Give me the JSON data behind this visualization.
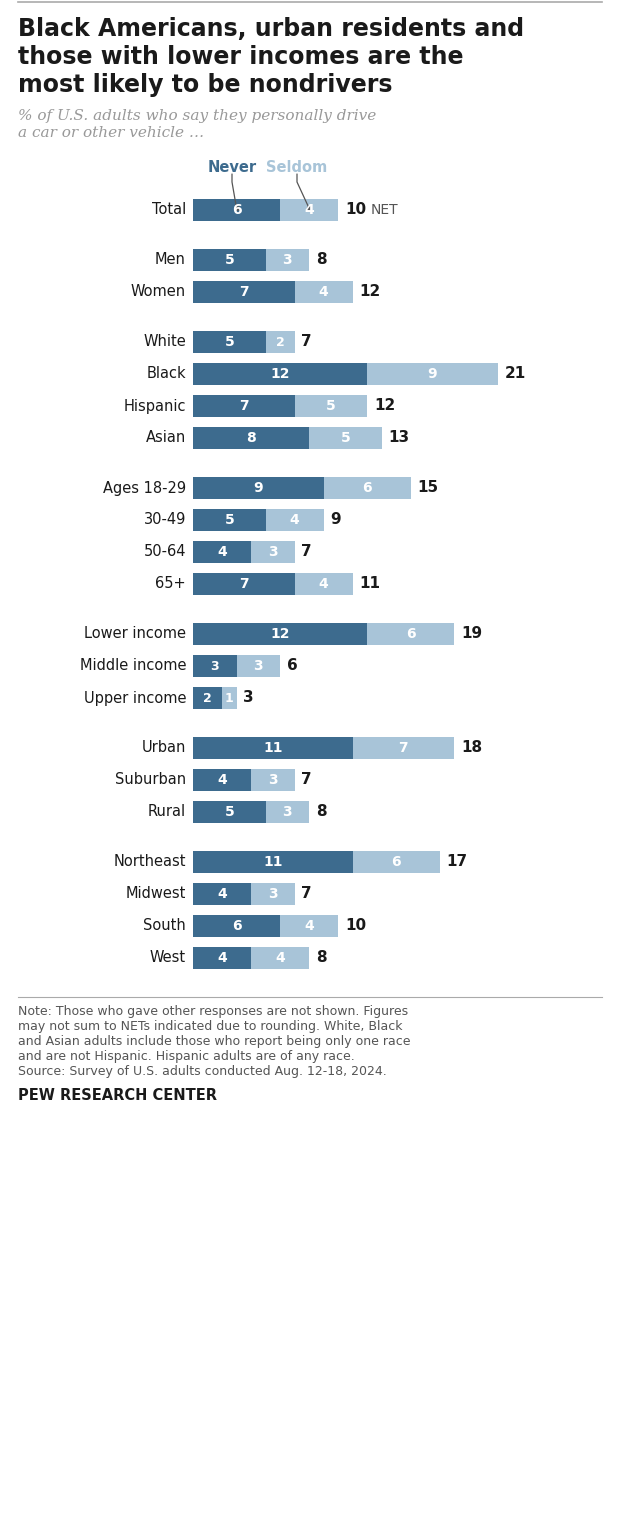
{
  "title_lines": [
    "Black Americans, urban residents and",
    "those with lower incomes are the",
    "most likely to be nondrivers"
  ],
  "subtitle_lines": [
    "% of U.S. adults who say they personally drive",
    "a car or other vehicle …"
  ],
  "note_lines": [
    "Note: Those who gave other responses are not shown. Figures",
    "may not sum to NETs indicated due to rounding. White, Black",
    "and Asian adults include those who report being only one race",
    "and are not Hispanic. Hispanic adults are of any race.",
    "Source: Survey of U.S. adults conducted Aug. 12-18, 2024."
  ],
  "source": "PEW RESEARCH CENTER",
  "color_never": "#3d6b8e",
  "color_seldom": "#a8c4d8",
  "categories": [
    "Total",
    "Men",
    "Women",
    "White",
    "Black",
    "Hispanic",
    "Asian",
    "Ages 18-29",
    "30-49",
    "50-64",
    "65+",
    "Lower income",
    "Middle income",
    "Upper income",
    "Urban",
    "Suburban",
    "Rural",
    "Northeast",
    "Midwest",
    "South",
    "West"
  ],
  "groups": [
    [
      0
    ],
    [
      1,
      2
    ],
    [
      3,
      4,
      5,
      6
    ],
    [
      7,
      8,
      9,
      10
    ],
    [
      11,
      12,
      13
    ],
    [
      14,
      15,
      16
    ],
    [
      17,
      18,
      19,
      20
    ]
  ],
  "never": [
    6,
    5,
    7,
    5,
    12,
    7,
    8,
    9,
    5,
    4,
    7,
    12,
    3,
    2,
    11,
    4,
    5,
    11,
    4,
    6,
    4
  ],
  "seldom": [
    4,
    3,
    4,
    2,
    9,
    5,
    5,
    6,
    4,
    3,
    4,
    6,
    3,
    1,
    7,
    3,
    3,
    6,
    3,
    4,
    4
  ],
  "net": [
    10,
    8,
    12,
    7,
    21,
    12,
    13,
    15,
    9,
    7,
    11,
    19,
    6,
    3,
    18,
    7,
    8,
    17,
    7,
    10,
    8
  ],
  "background_color": "#ffffff"
}
